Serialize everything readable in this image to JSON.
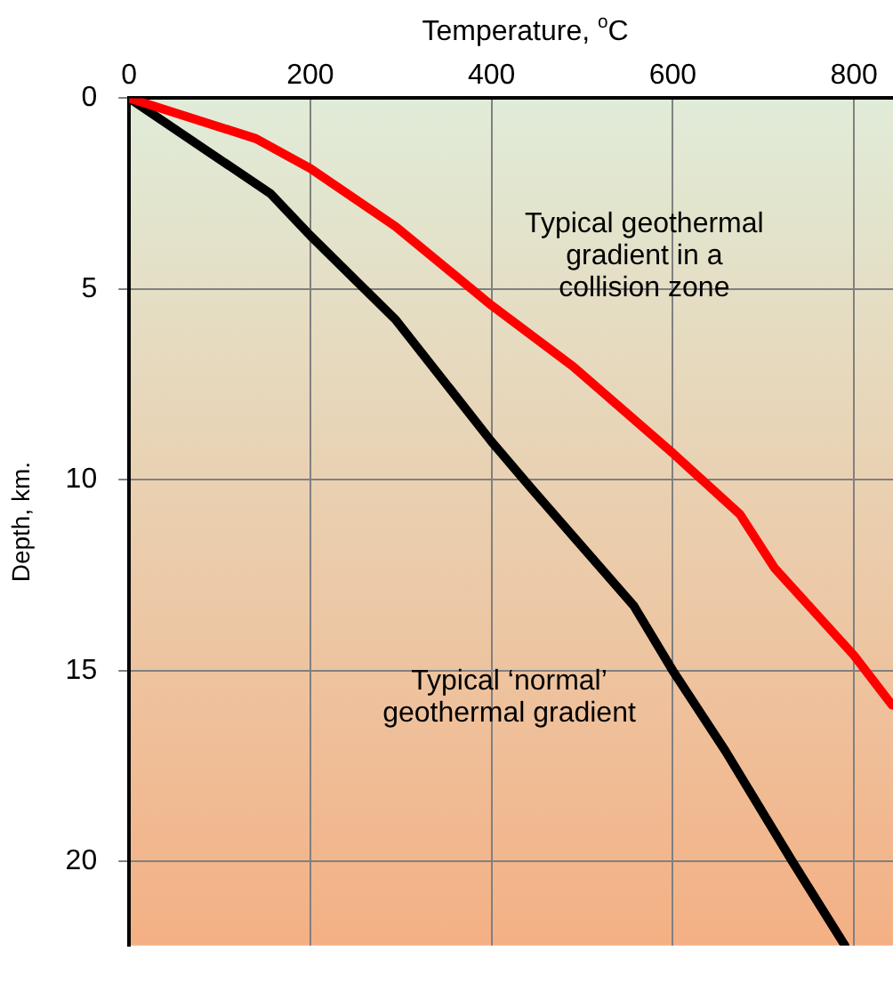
{
  "chart_data": {
    "type": "line",
    "xlabel": "Temperature, $^{o}$C",
    "ylabel": "Depth, km.",
    "xlim": [
      0,
      843
    ],
    "xticks": [
      0,
      200,
      400,
      600,
      800
    ],
    "ylim": [
      22.2,
      0
    ],
    "yticks": [
      0,
      5,
      10,
      15,
      20
    ],
    "grid": true,
    "line_style": "solid",
    "marker": "none",
    "series": [
      {
        "name": "Typical geothermal\ngradient in a\ncollision zone",
        "color": "#ff0000",
        "x": [
          0,
          140,
          200,
          294,
          400,
          490,
          600,
          674,
          712,
          800,
          842
        ],
        "values": [
          0,
          1.06,
          1.84,
          3.36,
          5.43,
          7.03,
          9.3,
          10.9,
          12.3,
          14.6,
          15.9
        ]
      },
      {
        "name": "Typical ‘normal’\ngeothermal gradient",
        "color": "#000000",
        "x": [
          0,
          156,
          200,
          294,
          400,
          445,
          557,
          600,
          658,
          732,
          790
        ],
        "values": [
          0,
          2.5,
          3.6,
          5.8,
          9.0,
          10.25,
          13.3,
          15.0,
          17.1,
          20.0,
          22.2
        ]
      }
    ]
  }
}
